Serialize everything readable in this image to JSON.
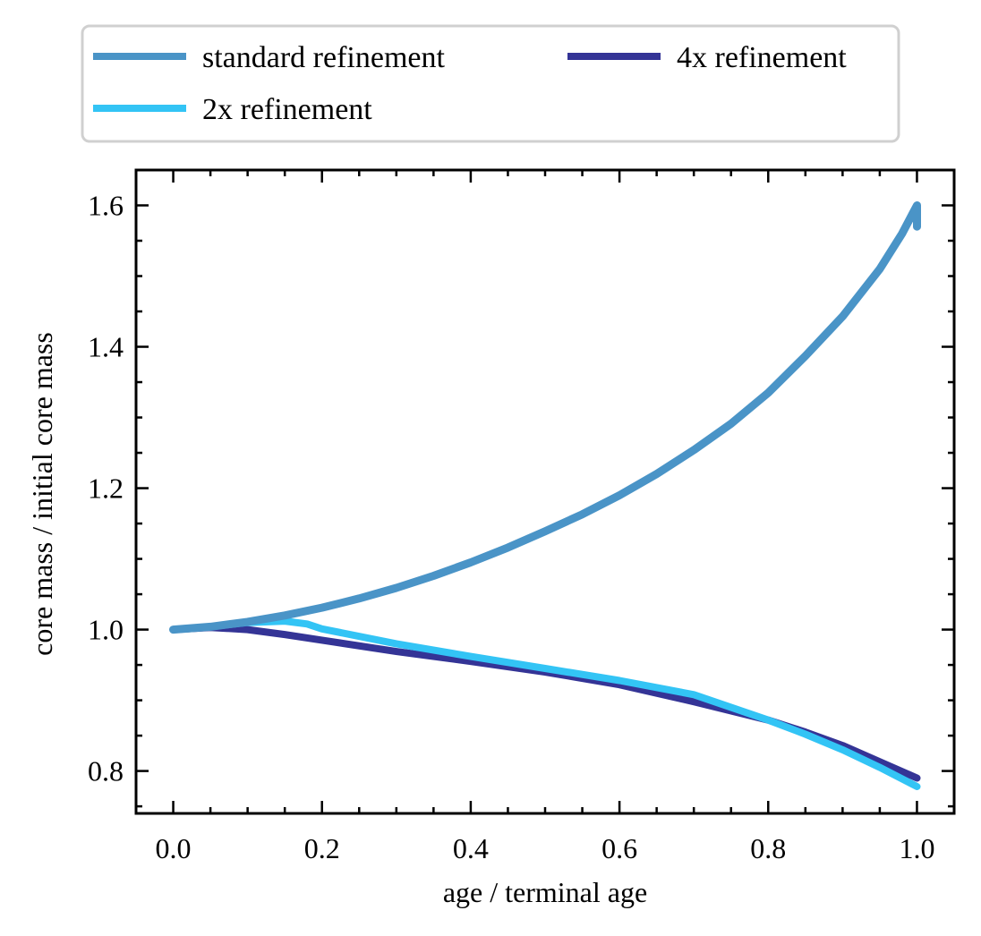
{
  "chart_data": {
    "type": "line",
    "title": "",
    "xlabel": "age / terminal age",
    "ylabel": "core mass / initial core mass",
    "xlim": [
      -0.05,
      1.05
    ],
    "ylim": [
      0.74,
      1.65
    ],
    "xticks": [
      0.0,
      0.2,
      0.4,
      0.6,
      0.8,
      1.0
    ],
    "xtick_labels": [
      "0.0",
      "0.2",
      "0.4",
      "0.6",
      "0.8",
      "1.0"
    ],
    "yticks": [
      0.8,
      1.0,
      1.2,
      1.4,
      1.6
    ],
    "ytick_labels": [
      "0.8",
      "1.0",
      "1.2",
      "1.4",
      "1.6"
    ],
    "x_minor_step": 0.05,
    "y_minor_step": 0.05,
    "grid": false,
    "legend_position": "above plot",
    "series": [
      {
        "name": "standard refinement",
        "color": "#4a94c7",
        "x": [
          0.0,
          0.05,
          0.1,
          0.15,
          0.2,
          0.25,
          0.3,
          0.35,
          0.4,
          0.45,
          0.5,
          0.55,
          0.6,
          0.65,
          0.7,
          0.75,
          0.8,
          0.85,
          0.9,
          0.95,
          0.98,
          0.995,
          1.0,
          1.0
        ],
        "y": [
          1.0,
          1.004,
          1.011,
          1.02,
          1.031,
          1.044,
          1.059,
          1.076,
          1.095,
          1.116,
          1.139,
          1.163,
          1.19,
          1.22,
          1.254,
          1.291,
          1.335,
          1.387,
          1.443,
          1.51,
          1.56,
          1.59,
          1.6,
          1.57
        ]
      },
      {
        "name": "2x refinement",
        "color": "#33c4f5",
        "x": [
          0.0,
          0.05,
          0.1,
          0.15,
          0.18,
          0.2,
          0.3,
          0.4,
          0.5,
          0.6,
          0.7,
          0.8,
          0.85,
          0.9,
          0.95,
          1.0
        ],
        "y": [
          1.0,
          1.004,
          1.01,
          1.012,
          1.008,
          1.001,
          0.98,
          0.962,
          0.945,
          0.928,
          0.908,
          0.872,
          0.852,
          0.83,
          0.805,
          0.778
        ]
      },
      {
        "name": "4x refinement",
        "color": "#343496",
        "x": [
          0.0,
          0.05,
          0.1,
          0.15,
          0.2,
          0.3,
          0.4,
          0.5,
          0.6,
          0.7,
          0.8,
          0.85,
          0.9,
          0.95,
          1.0
        ],
        "y": [
          1.0,
          1.003,
          1.0,
          0.993,
          0.985,
          0.969,
          0.955,
          0.94,
          0.922,
          0.898,
          0.872,
          0.855,
          0.836,
          0.813,
          0.79
        ]
      }
    ]
  }
}
